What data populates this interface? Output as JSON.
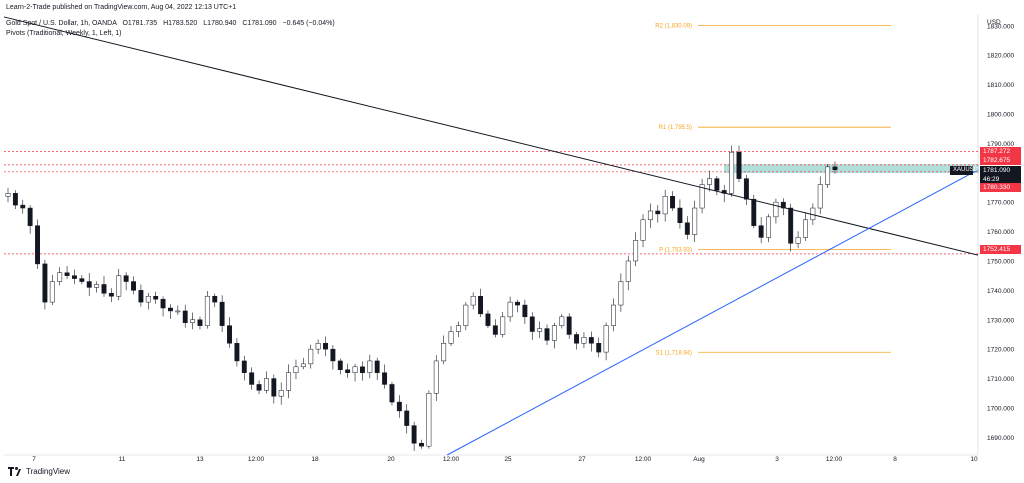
{
  "header": {
    "publisher": "Learn-2-Trade published on TradingView.com, Aug 04, 2022 12:13 UTC+1",
    "symbol_title": "Gold Spot / U.S. Dollar, 1h, OANDA",
    "ohlc": {
      "open": "O1781.735",
      "high": "H1783.520",
      "low": "L1780.940",
      "close": "C1781.090",
      "change": "−0.645 (−0.04%)"
    },
    "indicator": "Pivots (Traditional, Weekly, 1, Left, 1)"
  },
  "axis": {
    "currency": "USD",
    "y_ticks": [
      "1830.000",
      "1820.000",
      "1810.000",
      "1800.000",
      "1790.000",
      "1770.000",
      "1760.000",
      "1750.000",
      "1740.000",
      "1730.000",
      "1720.000",
      "1710.000",
      "1700.000",
      "1690.000"
    ],
    "x_ticks": [
      "7",
      "11",
      "13",
      "12:00",
      "18",
      "20",
      "12:00",
      "25",
      "27",
      "12:00",
      "Aug",
      "3",
      "12:00",
      "8",
      "10"
    ]
  },
  "pivots": {
    "r2": "R2 (1,830.09)",
    "r1": "R1 (1,795.5)",
    "p": "P (1,753.93)",
    "s1": "S1 (1,718.94)"
  },
  "price_tags": {
    "t1": "1787.272",
    "t2": "1782.675",
    "current_symbol": "XAUUSD",
    "current_price": "1781.090",
    "countdown": "46:29",
    "t3": "1780.330",
    "t4": "1752.415"
  },
  "colors": {
    "bull": "#ffffff",
    "bear": "#131722",
    "pivot": "#f5a623",
    "trend_black": "#131722",
    "trend_blue": "#2962ff",
    "zone": "#a3d9d4",
    "red": "#f23645"
  },
  "brand": "TradingView",
  "chart_data": {
    "type": "candlestick",
    "symbol": "XAUUSD",
    "timeframe": "1h",
    "ylim": [
      1684,
      1834
    ],
    "trendlines": [
      {
        "from": [
          0,
          1833
        ],
        "to": [
          1,
          1752
        ]
      },
      {
        "from": [
          0.455,
          1684
        ],
        "to": [
          1,
          1781
        ]
      }
    ],
    "pivot_levels": {
      "R2": 1830.09,
      "R1": 1795.5,
      "P": 1753.93,
      "S1": 1718.94
    },
    "levels": [
      1787.272,
      1782.675,
      1780.33,
      1752.415
    ],
    "close_path": [
      1773,
      1769,
      1768,
      1762,
      1749,
      1736,
      1743,
      1746,
      1745,
      1744,
      1743,
      1741,
      1742,
      1739,
      1738,
      1745,
      1743,
      1740,
      1736,
      1738,
      1737,
      1734,
      1733,
      1733,
      1729,
      1730,
      1728,
      1738,
      1736,
      1728,
      1722,
      1716,
      1712,
      1708,
      1706,
      1710,
      1704,
      1706,
      1712,
      1714,
      1715,
      1720,
      1722,
      1720,
      1716,
      1713,
      1712,
      1714,
      1712,
      1716,
      1712,
      1708,
      1702,
      1699,
      1694,
      1688,
      1687,
      1705,
      1716,
      1722,
      1726,
      1728,
      1735,
      1738,
      1732,
      1728,
      1725,
      1731,
      1736,
      1735,
      1731,
      1726,
      1727,
      1723,
      1728,
      1731,
      1725,
      1722,
      1724,
      1722,
      1719,
      1728,
      1735,
      1743,
      1750,
      1757,
      1764,
      1767,
      1766,
      1772,
      1768,
      1763,
      1759,
      1768,
      1776,
      1778,
      1774,
      1773,
      1787,
      1778,
      1771,
      1762,
      1758,
      1765,
      1770,
      1768,
      1756,
      1758,
      1764,
      1768,
      1776,
      1782,
      1781
    ]
  }
}
